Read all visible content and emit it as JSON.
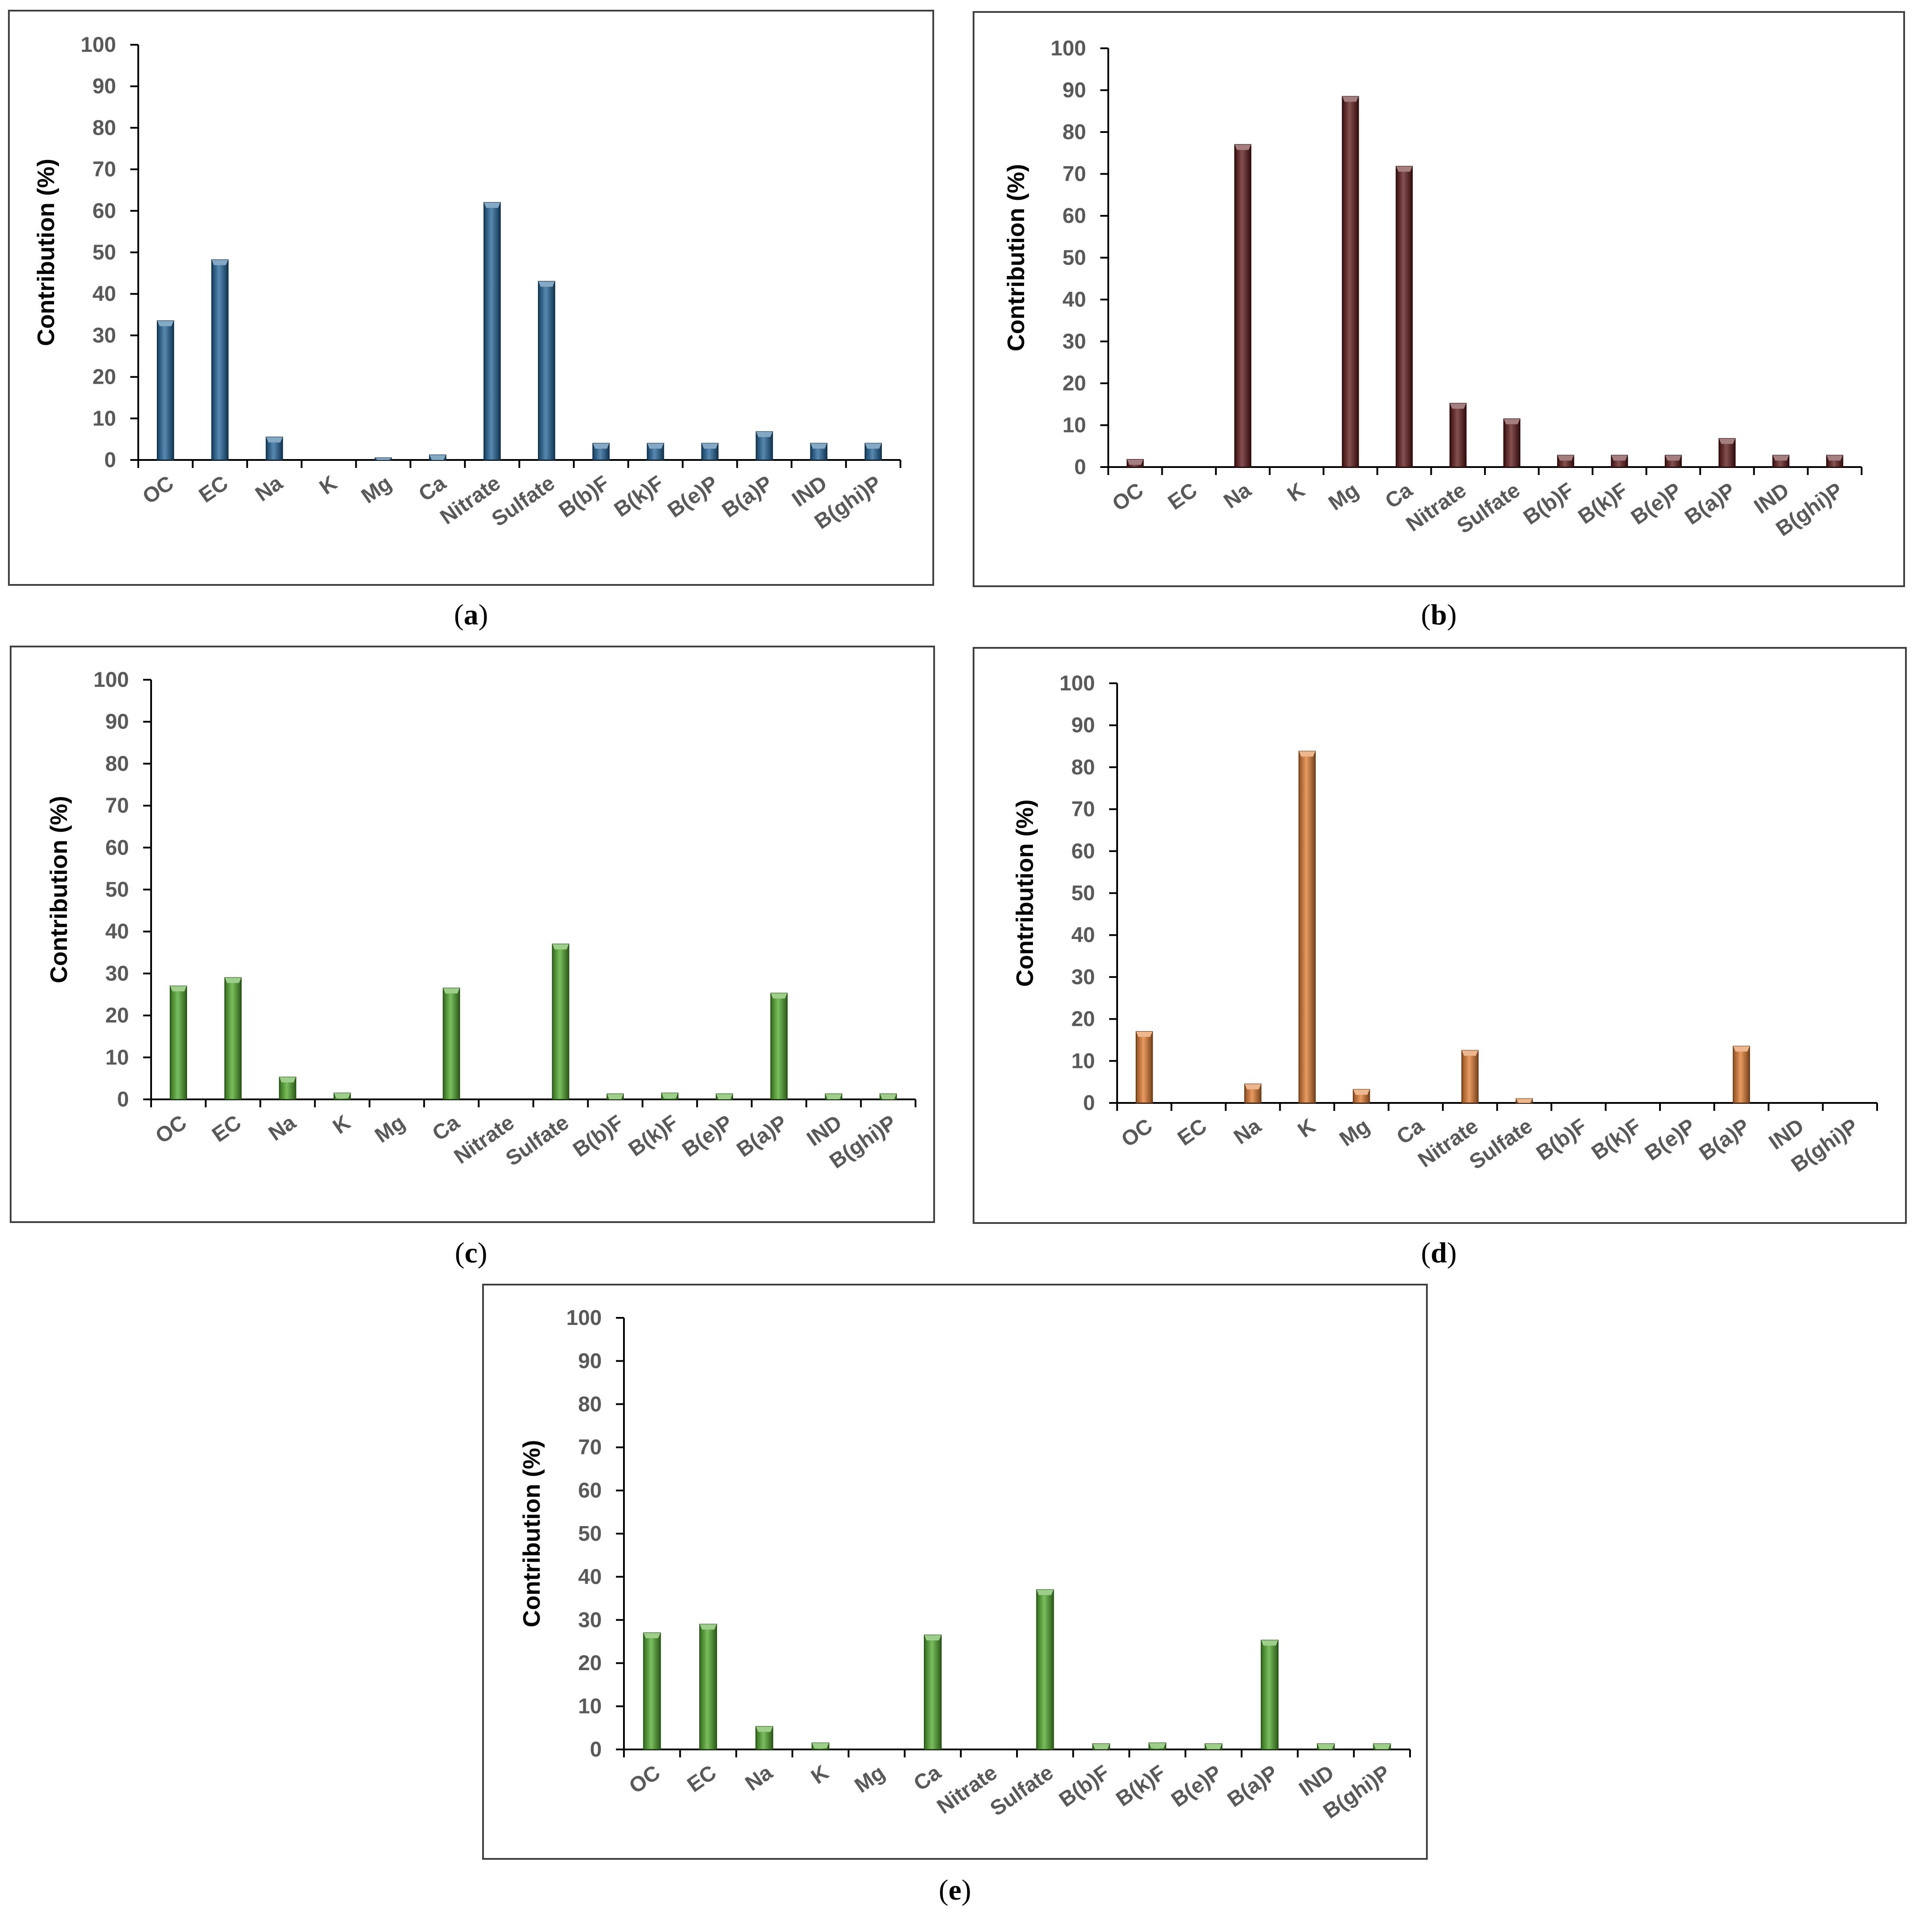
{
  "colors": {
    "a": "#1f6296",
    "b": "#5c1616",
    "c": "#4ea82a",
    "d": "#e07a2e",
    "e": "#4ea82a",
    "axis": "#000000",
    "text": "#595959"
  },
  "chart_data": [
    {
      "id": "a",
      "type": "bar",
      "caption": "a",
      "ylabel": "Contribution (%)",
      "ylim": [
        0,
        100
      ],
      "yticks": [
        "0",
        "10",
        "20",
        "30",
        "40",
        "50",
        "60",
        "70",
        "80",
        "90",
        "100"
      ],
      "categories": [
        "OC",
        "EC",
        "Na",
        "K",
        "Mg",
        "Ca",
        "Nitrate",
        "Sulfate",
        "B(b)F",
        "B(k)F",
        "B(e)P",
        "B(a)P",
        "IND",
        "B(ghi)P"
      ],
      "values": [
        33.5,
        48.2,
        5.5,
        0,
        0.5,
        1.2,
        62,
        43,
        4,
        4,
        4,
        6.8,
        4,
        4
      ]
    },
    {
      "id": "b",
      "type": "bar",
      "caption": "b",
      "ylabel": "Contribution (%)",
      "ylim": [
        0,
        100
      ],
      "yticks": [
        "0",
        "10",
        "20",
        "30",
        "40",
        "50",
        "60",
        "70",
        "80",
        "90",
        "100"
      ],
      "categories": [
        "OC",
        "EC",
        "Na",
        "K",
        "Mg",
        "Ca",
        "Nitrate",
        "Sulfate",
        "B(b)F",
        "B(k)F",
        "B(e)P",
        "B(a)P",
        "IND",
        "B(ghi)P"
      ],
      "values": [
        1.8,
        0,
        77,
        0,
        88.5,
        71.8,
        15.2,
        11.5,
        2.8,
        2.8,
        2.8,
        6.8,
        2.8,
        2.8
      ]
    },
    {
      "id": "c",
      "type": "bar",
      "caption": "c",
      "ylabel": "Contribution (%)",
      "ylim": [
        0,
        100
      ],
      "yticks": [
        "0",
        "10",
        "20",
        "30",
        "40",
        "50",
        "60",
        "70",
        "80",
        "90",
        "100"
      ],
      "categories": [
        "OC",
        "EC",
        "Na",
        "K",
        "Mg",
        "Ca",
        "Nitrate",
        "Sulfate",
        "B(b)F",
        "B(k)F",
        "B(e)P",
        "B(a)P",
        "IND",
        "B(ghi)P"
      ],
      "values": [
        27,
        29,
        5.3,
        1.5,
        0,
        26.5,
        0,
        37,
        1.3,
        1.5,
        1.3,
        25.3,
        1.3,
        1.3
      ]
    },
    {
      "id": "d",
      "type": "bar",
      "caption": "d",
      "ylabel": "Contribution (%)",
      "ylim": [
        0,
        100
      ],
      "yticks": [
        "0",
        "10",
        "20",
        "30",
        "40",
        "50",
        "60",
        "70",
        "80",
        "90",
        "100"
      ],
      "categories": [
        "OC",
        "EC",
        "Na",
        "K",
        "Mg",
        "Ca",
        "Nitrate",
        "Sulfate",
        "B(b)F",
        "B(k)F",
        "B(e)P",
        "B(a)P",
        "IND",
        "B(ghi)P"
      ],
      "values": [
        17,
        0,
        4.5,
        83.8,
        3.2,
        0,
        12.5,
        1,
        0,
        0,
        0,
        13.5,
        0,
        0
      ]
    },
    {
      "id": "e",
      "type": "bar",
      "caption": "e",
      "ylabel": "Contribution (%)",
      "ylim": [
        0,
        100
      ],
      "yticks": [
        "0",
        "10",
        "20",
        "30",
        "40",
        "50",
        "60",
        "70",
        "80",
        "90",
        "100"
      ],
      "categories": [
        "OC",
        "EC",
        "Na",
        "K",
        "Mg",
        "Ca",
        "Nitrate",
        "Sulfate",
        "B(b)F",
        "B(k)F",
        "B(e)P",
        "B(a)P",
        "IND",
        "B(ghi)P"
      ],
      "values": [
        27,
        29,
        5.3,
        1.5,
        0,
        26.5,
        0,
        37,
        1.3,
        1.5,
        1.3,
        25.3,
        1.3,
        1.3
      ]
    }
  ]
}
